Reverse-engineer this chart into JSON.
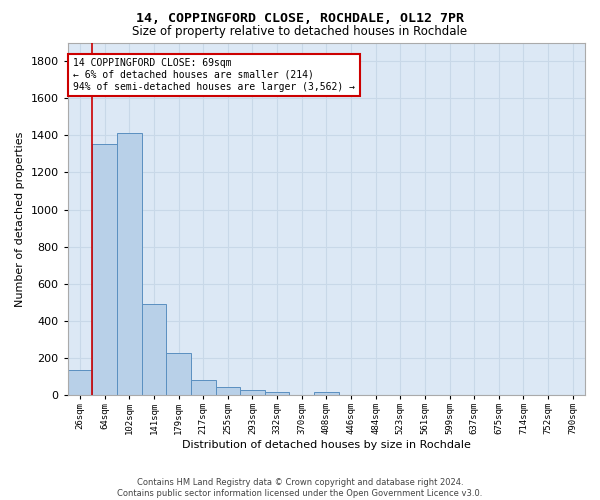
{
  "title1": "14, COPPINGFORD CLOSE, ROCHDALE, OL12 7PR",
  "title2": "Size of property relative to detached houses in Rochdale",
  "xlabel": "Distribution of detached houses by size in Rochdale",
  "ylabel": "Number of detached properties",
  "bin_labels": [
    "26sqm",
    "64sqm",
    "102sqm",
    "141sqm",
    "179sqm",
    "217sqm",
    "255sqm",
    "293sqm",
    "332sqm",
    "370sqm",
    "408sqm",
    "446sqm",
    "484sqm",
    "523sqm",
    "561sqm",
    "599sqm",
    "637sqm",
    "675sqm",
    "714sqm",
    "752sqm",
    "790sqm"
  ],
  "bar_values": [
    135,
    1355,
    1410,
    490,
    225,
    80,
    45,
    28,
    15,
    0,
    18,
    0,
    0,
    0,
    0,
    0,
    0,
    0,
    0,
    0,
    0
  ],
  "bar_color": "#b8d0e8",
  "bar_edge_color": "#5a8fc0",
  "annotation_text": "14 COPPINGFORD CLOSE: 69sqm\n← 6% of detached houses are smaller (214)\n94% of semi-detached houses are larger (3,562) →",
  "annotation_box_color": "#ffffff",
  "annotation_box_edge_color": "#cc0000",
  "vline_color": "#cc0000",
  "grid_color": "#c8d8e8",
  "background_color": "#dce8f5",
  "footer_text": "Contains HM Land Registry data © Crown copyright and database right 2024.\nContains public sector information licensed under the Open Government Licence v3.0.",
  "ylim": [
    0,
    1900
  ],
  "yticks": [
    0,
    200,
    400,
    600,
    800,
    1000,
    1200,
    1400,
    1600,
    1800
  ]
}
